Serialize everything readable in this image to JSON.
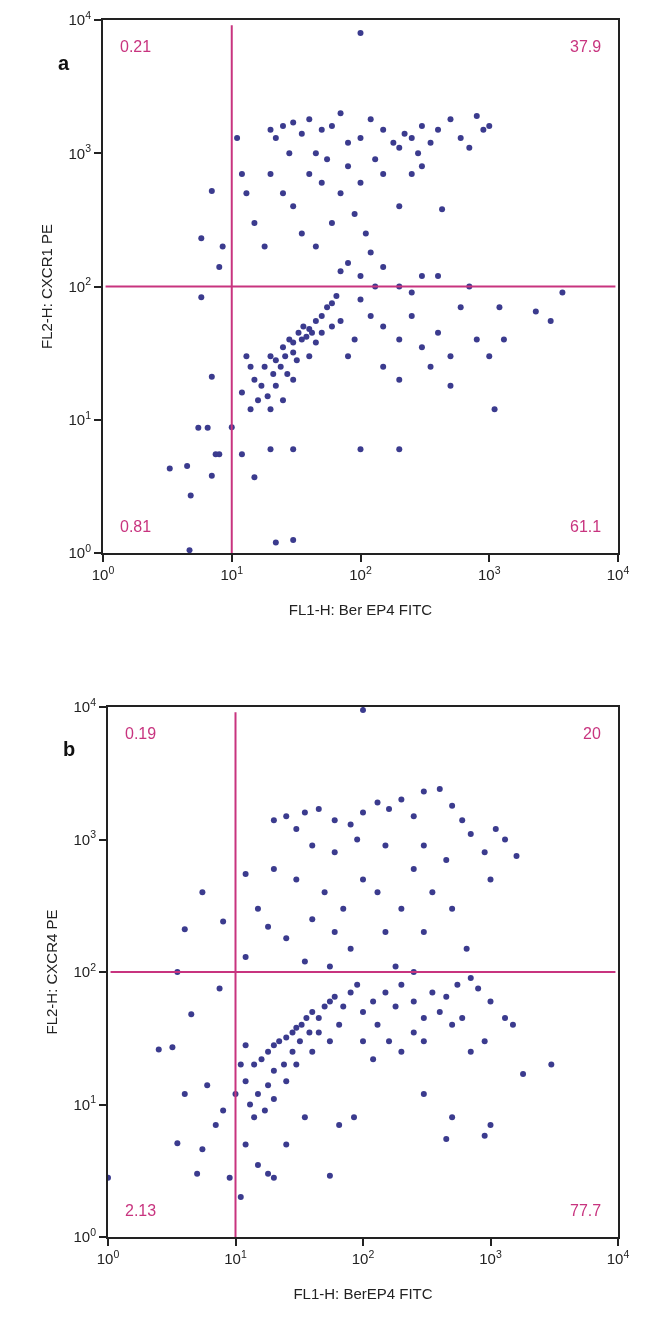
{
  "chart_data": [
    {
      "type": "scatter",
      "title": "a",
      "xlabel": "FL1-H: Ber EP4 FITC",
      "ylabel": "FL2-H: CXCR1 PE",
      "log": "xy",
      "marker": "circle",
      "grid": false,
      "xlim": [
        1,
        10000
      ],
      "ylim": [
        1,
        10000
      ],
      "xticks": [
        {
          "value": 1,
          "label": "10$^{0}$"
        },
        {
          "value": 10,
          "label": "10$^{1}$"
        },
        {
          "value": 100,
          "label": "10$^{2}$"
        },
        {
          "value": 1000,
          "label": "10$^{3}$"
        },
        {
          "value": 10000,
          "label": "10$^{4}$"
        }
      ],
      "yticks": [
        {
          "value": 1,
          "label": "10$^{0}$"
        },
        {
          "value": 10,
          "label": "10$^{1}$"
        },
        {
          "value": 100,
          "label": "10$^{2}$"
        },
        {
          "value": 1000,
          "label": "10$^{3}$"
        },
        {
          "value": 10000,
          "label": "10$^{4}$"
        }
      ],
      "ref_lines": [
        {
          "axis": "x",
          "value": 10,
          "color": "#c8347f"
        },
        {
          "axis": "y",
          "value": 100,
          "color": "#c8347f"
        }
      ],
      "annotations": [
        "0.21",
        "37.9",
        "0.81",
        "61.1"
      ],
      "series": [
        {
          "color": "#3b3b8e",
          "x": [
            15,
            18,
            20,
            22,
            25,
            28,
            30,
            33,
            36,
            40,
            45,
            50,
            55,
            60,
            65,
            17,
            19,
            21,
            24,
            26,
            30,
            35,
            38,
            42,
            14,
            13,
            16,
            12,
            22,
            27,
            32,
            45,
            50,
            60,
            70,
            20,
            25,
            14,
            30,
            40,
            20,
            22,
            25,
            30,
            35,
            40,
            50,
            60,
            70,
            80,
            100,
            120,
            150,
            180,
            200,
            220,
            250,
            280,
            300,
            350,
            400,
            500,
            600,
            700,
            800,
            900,
            1000,
            28,
            45,
            130,
            25,
            30,
            40,
            50,
            60,
            35,
            70,
            80,
            100,
            150,
            200,
            45,
            15,
            13,
            18,
            12,
            90,
            110,
            250,
            300,
            430,
            20,
            55,
            70,
            80,
            100,
            120,
            150,
            130,
            200,
            250,
            300,
            400,
            100,
            120,
            150,
            200,
            250,
            300,
            400,
            500,
            600,
            800,
            1000,
            150,
            200,
            90,
            80,
            700,
            1200,
            2300,
            3000,
            3700,
            1300,
            1100,
            500,
            350,
            3.3,
            4.5,
            4.8,
            5.5,
            7,
            7.5,
            8,
            6.5,
            10,
            12,
            15,
            20,
            30,
            100,
            200,
            22,
            30,
            4.7,
            7,
            5.8,
            5.8,
            7,
            8,
            8.5,
            11,
            100
          ],
          "values": [
            20,
            25,
            30,
            28,
            35,
            40,
            38,
            45,
            50,
            48,
            55,
            60,
            70,
            75,
            85,
            18,
            15,
            22,
            25,
            30,
            32,
            40,
            42,
            45,
            25,
            30,
            14,
            16,
            18,
            22,
            28,
            38,
            45,
            50,
            55,
            12,
            14,
            12,
            20,
            30,
            1500,
            1300,
            1600,
            1700,
            1400,
            1800,
            1500,
            1600,
            2000,
            1200,
            1300,
            1800,
            1500,
            1200,
            1100,
            1400,
            1300,
            1000,
            1600,
            1200,
            1500,
            1800,
            1300,
            1100,
            1900,
            1500,
            1600,
            1000,
            1000,
            900,
            500,
            400,
            700,
            600,
            300,
            250,
            500,
            800,
            600,
            700,
            400,
            200,
            300,
            500,
            200,
            700,
            350,
            250,
            700,
            800,
            380,
            700,
            900,
            130,
            150,
            120,
            180,
            140,
            100,
            100,
            90,
            120,
            120,
            80,
            60,
            50,
            40,
            60,
            35,
            45,
            30,
            70,
            40,
            30,
            25,
            20,
            40,
            30,
            100,
            70,
            65,
            55,
            90,
            40,
            12,
            18,
            25,
            4.3,
            4.5,
            2.7,
            8.7,
            3.8,
            5.5,
            5.5,
            8.7,
            8.8,
            5.5,
            3.7,
            6,
            6,
            6,
            6,
            1.2,
            1.25,
            1.05,
            21,
            83,
            230,
            520,
            140,
            200,
            1300,
            8000
          ]
        }
      ]
    },
    {
      "type": "scatter",
      "title": "b",
      "xlabel": "FL1-H: BerEP4 FITC",
      "ylabel": "FL2-H: CXCR4 PE",
      "log": "xy",
      "marker": "circle",
      "grid": false,
      "xlim": [
        1,
        10000
      ],
      "ylim": [
        1,
        10000
      ],
      "xticks": [
        {
          "value": 1,
          "label": "10$^{0}$"
        },
        {
          "value": 10,
          "label": "10$^{1}$"
        },
        {
          "value": 100,
          "label": "10$^{2}$"
        },
        {
          "value": 1000,
          "label": "10$^{3}$"
        },
        {
          "value": 10000,
          "label": "10$^{4}$"
        }
      ],
      "yticks": [
        {
          "value": 1,
          "label": "10$^{0}$"
        },
        {
          "value": 10,
          "label": "10$^{1}$"
        },
        {
          "value": 100,
          "label": "10$^{2}$"
        },
        {
          "value": 1000,
          "label": "10$^{3}$"
        },
        {
          "value": 10000,
          "label": "10$^{4}$"
        }
      ],
      "ref_lines": [
        {
          "axis": "x",
          "value": 10,
          "color": "#c8347f"
        },
        {
          "axis": "y",
          "value": 100,
          "color": "#c8347f"
        }
      ],
      "annotations": [
        "0.19",
        "20",
        "2.13",
        "77.7"
      ],
      "series": [
        {
          "color": "#3b3b8e",
          "x": [
            12,
            14,
            16,
            18,
            20,
            22,
            25,
            28,
            30,
            33,
            36,
            40,
            45,
            50,
            55,
            60,
            15,
            13,
            18,
            20,
            24,
            28,
            32,
            38,
            45,
            11,
            12,
            10,
            14,
            17,
            20,
            25,
            30,
            40,
            55,
            65,
            70,
            80,
            90,
            100,
            120,
            150,
            180,
            200,
            250,
            300,
            350,
            400,
            500,
            600,
            700,
            800,
            1000,
            130,
            160,
            200,
            250,
            300,
            100,
            120,
            450,
            550,
            250,
            180,
            1300,
            1500,
            3000,
            1800,
            700,
            900,
            20,
            25,
            30,
            35,
            45,
            60,
            80,
            100,
            130,
            160,
            200,
            250,
            300,
            400,
            500,
            600,
            700,
            1100,
            1300,
            1600,
            40,
            60,
            90,
            150,
            300,
            450,
            20,
            30,
            50,
            70,
            100,
            130,
            200,
            250,
            350,
            40,
            60,
            150,
            300,
            500,
            15,
            12,
            18,
            25,
            80,
            650,
            8,
            5.5,
            4,
            100,
            35,
            55,
            12,
            900,
            1000,
            1,
            2.5,
            3.2,
            3.5,
            4,
            5,
            5.5,
            6,
            7,
            8,
            9,
            11,
            12,
            15,
            18,
            20,
            25,
            35,
            55,
            65,
            85,
            300,
            450,
            500,
            900,
            1000,
            4.5,
            3.5,
            7.5
          ],
          "values": [
            15,
            20,
            22,
            25,
            28,
            30,
            32,
            35,
            38,
            40,
            45,
            50,
            45,
            55,
            60,
            65,
            12,
            10,
            14,
            18,
            20,
            25,
            30,
            35,
            35,
            20,
            28,
            12,
            8,
            9,
            11,
            15,
            20,
            25,
            30,
            40,
            55,
            70,
            80,
            50,
            60,
            70,
            55,
            80,
            60,
            45,
            70,
            50,
            40,
            45,
            90,
            75,
            60,
            40,
            30,
            25,
            35,
            30,
            30,
            22,
            65,
            80,
            100,
            110,
            45,
            40,
            20,
            17,
            25,
            30,
            1400,
            1500,
            1200,
            1600,
            1700,
            1400,
            1300,
            1600,
            1900,
            1700,
            2000,
            1500,
            2300,
            2400,
            1800,
            1400,
            1100,
            1200,
            1000,
            750,
            900,
            800,
            1000,
            900,
            900,
            700,
            600,
            500,
            400,
            300,
            500,
            400,
            300,
            600,
            400,
            250,
            200,
            200,
            200,
            300,
            300,
            550,
            220,
            180,
            150,
            150,
            240,
            400,
            210,
            9500,
            120,
            110,
            130,
            800,
            500,
            2.8,
            26,
            27,
            5.1,
            12,
            3,
            4.6,
            14,
            7,
            9,
            2.8,
            2,
            5,
            3.5,
            3,
            2.8,
            5,
            8,
            2.9,
            7,
            8,
            12,
            5.5,
            8,
            5.8,
            7,
            48,
            100,
            75
          ]
        }
      ]
    }
  ]
}
